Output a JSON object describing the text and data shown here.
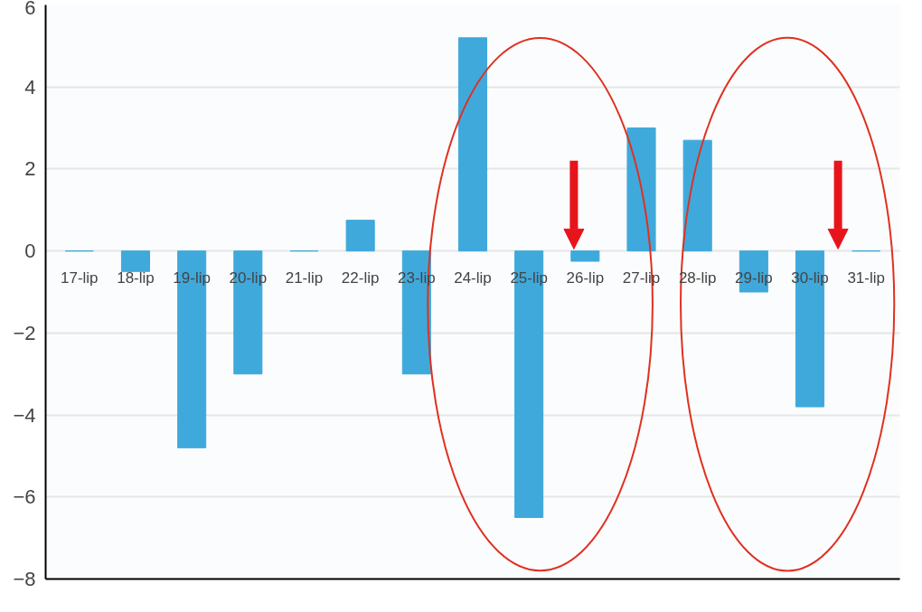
{
  "chart_data": {
    "type": "bar",
    "categories": [
      "17-lip",
      "18-lip",
      "19-lip",
      "20-lip",
      "21-lip",
      "22-lip",
      "23-lip",
      "24-lip",
      "25-lip",
      "26-lip",
      "27-lip",
      "28-lip",
      "29-lip",
      "30-lip",
      "31-lip"
    ],
    "values": [
      0,
      -0.5,
      -4.8,
      -3.0,
      0,
      0.75,
      -3.0,
      5.2,
      -6.5,
      -0.25,
      3.0,
      2.7,
      -1.0,
      -3.8,
      0
    ],
    "color": "#3fa9db",
    "ylim": [
      -8,
      6
    ],
    "yticks": [
      -8,
      -6,
      -4,
      -2,
      0,
      2,
      4,
      6
    ],
    "grid": "y"
  }
}
